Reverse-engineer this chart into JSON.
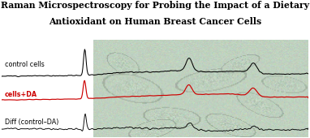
{
  "title_line1": "Raman Microspectroscopy for Probing the Impact of a Dietary",
  "title_line2": "Antioxidant on Human Breast Cancer Cells",
  "title_fontsize": 7.8,
  "title_fontweight": "bold",
  "label_control": "control cells",
  "label_cells_da": "cells+DA",
  "label_diff": "Diff (control–DA)",
  "label_fontsize": 5.8,
  "color_control": "#000000",
  "color_cells_da": "#cc0000",
  "color_diff": "#000000",
  "fig_bg": "#ffffff",
  "cell_bg": [
    0.75,
    0.82,
    0.75
  ]
}
